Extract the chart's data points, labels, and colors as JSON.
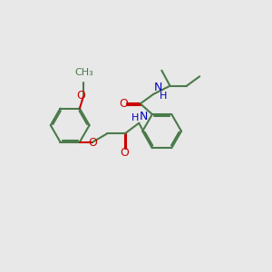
{
  "bg_color": "#e8e8e8",
  "bond_color": "#4a7a4a",
  "O_color": "#cc0000",
  "N_color": "#0000bb",
  "line_width": 1.5,
  "figsize": [
    3.0,
    3.0
  ],
  "dpi": 100,
  "xlim": [
    0,
    10
  ],
  "ylim": [
    0,
    10
  ],
  "font_size_label": 9.0,
  "font_size_H": 8.0
}
